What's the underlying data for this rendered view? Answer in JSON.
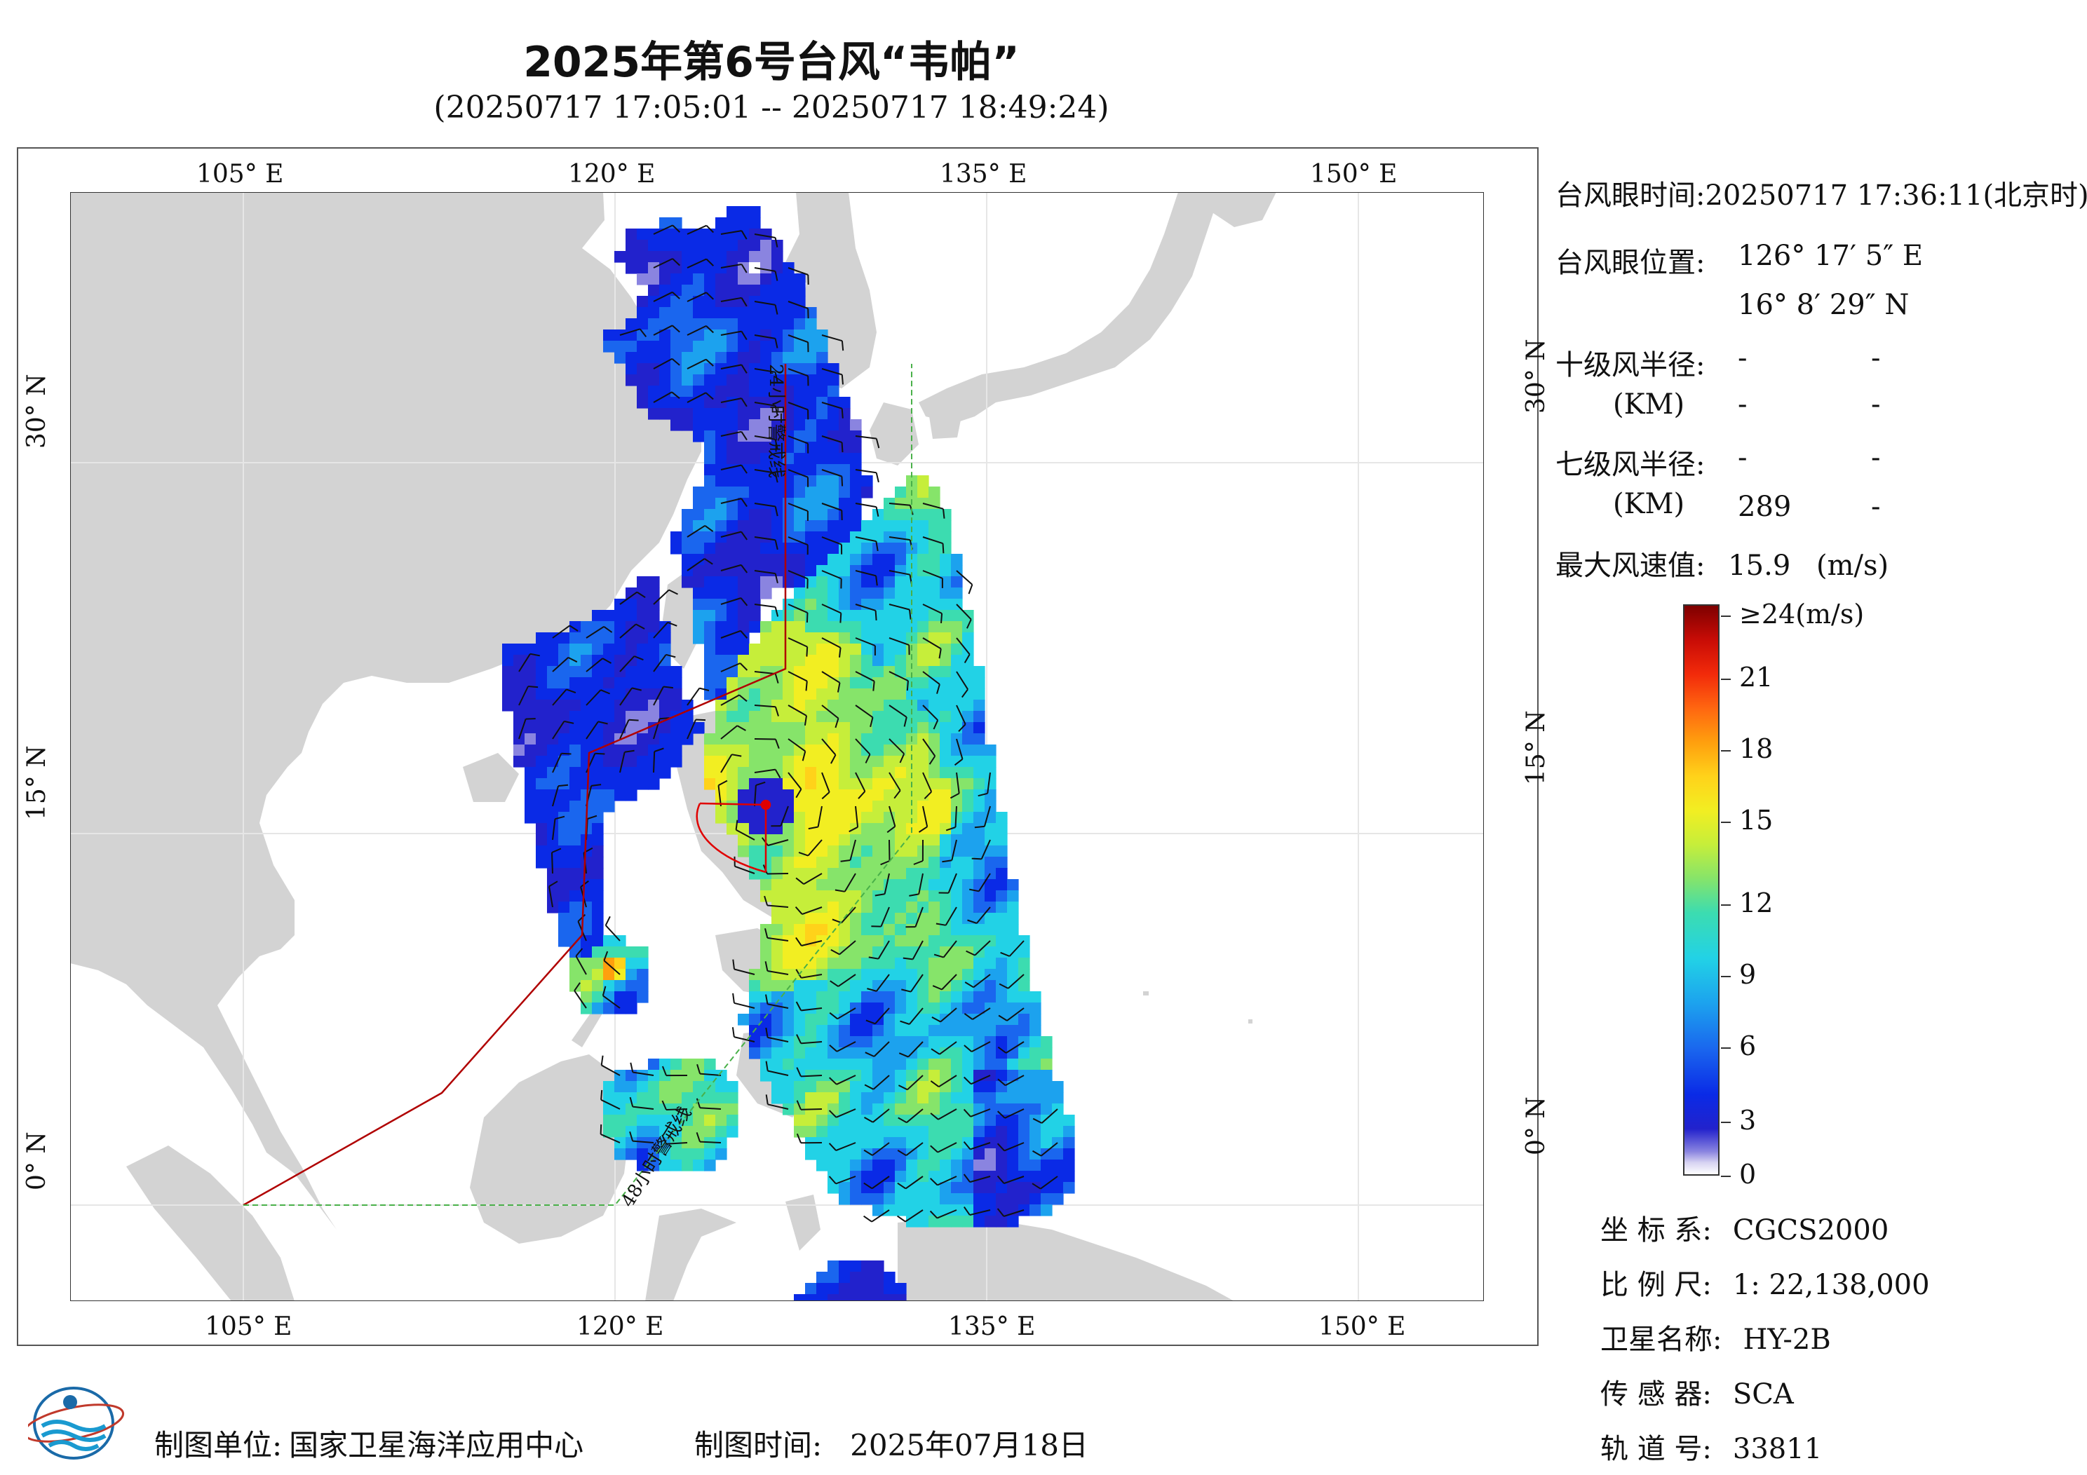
{
  "title": "2025年第6号台风“韦帕”",
  "subtitle": "(20250717 17:05:01 -- 20250717 18:49:24)",
  "map": {
    "lon_labels": [
      "105° E",
      "120° E",
      "135° E",
      "150° E"
    ],
    "lat_labels": [
      "30° N",
      "15° N",
      "0° N"
    ],
    "lon_range": [
      98,
      155
    ],
    "lat_range": [
      -4,
      41
    ],
    "warning_line_24h": "24小时警戒线",
    "warning_line_48h": "48小时警戒线",
    "colors": {
      "land": "#d3d3d3",
      "sea": "#ffffff",
      "warn24": "#b00000",
      "warn48": "#49b049",
      "track": "#e00000"
    }
  },
  "info": {
    "eye_time_label": "台风眼时间:",
    "eye_time_value": "20250717 17:36:11(北京时)",
    "eye_pos_label": "台风眼位置:",
    "eye_lon": "126° 17′ 5″ E",
    "eye_lat": "16° 8′ 29″ N",
    "r10_label": "十级风半径:",
    "r7_label": "七级风半径:",
    "km_label": "(KM)",
    "r10_values": [
      "-",
      "-",
      "-",
      "-"
    ],
    "r7_values": [
      "-",
      "-",
      "289",
      "-"
    ],
    "max_wind_label": "最大风速值:",
    "max_wind_value": "15.9",
    "max_wind_unit": "(m/s)"
  },
  "colorbar": {
    "labels": [
      "≥24(m/s)",
      "21",
      "18",
      "15",
      "12",
      "9",
      "6",
      "3",
      "0"
    ],
    "max": 24
  },
  "meta": {
    "crs_label": "坐 标 系:",
    "crs_value": "CGCS2000",
    "scale_label": "比 例 尺:",
    "scale_value": "1: 22,138,000",
    "sat_label": "卫星名称:",
    "sat_value": "HY-2B",
    "sensor_label": "传 感 器:",
    "sensor_value": "SCA",
    "orbit_label": "轨 道 号:",
    "orbit_value": "33811"
  },
  "footer": {
    "unit_label": "制图单位:",
    "unit_value": "国家卫星海洋应用中心",
    "time_label": "制图时间:",
    "time_value": "2025年07月18日"
  }
}
